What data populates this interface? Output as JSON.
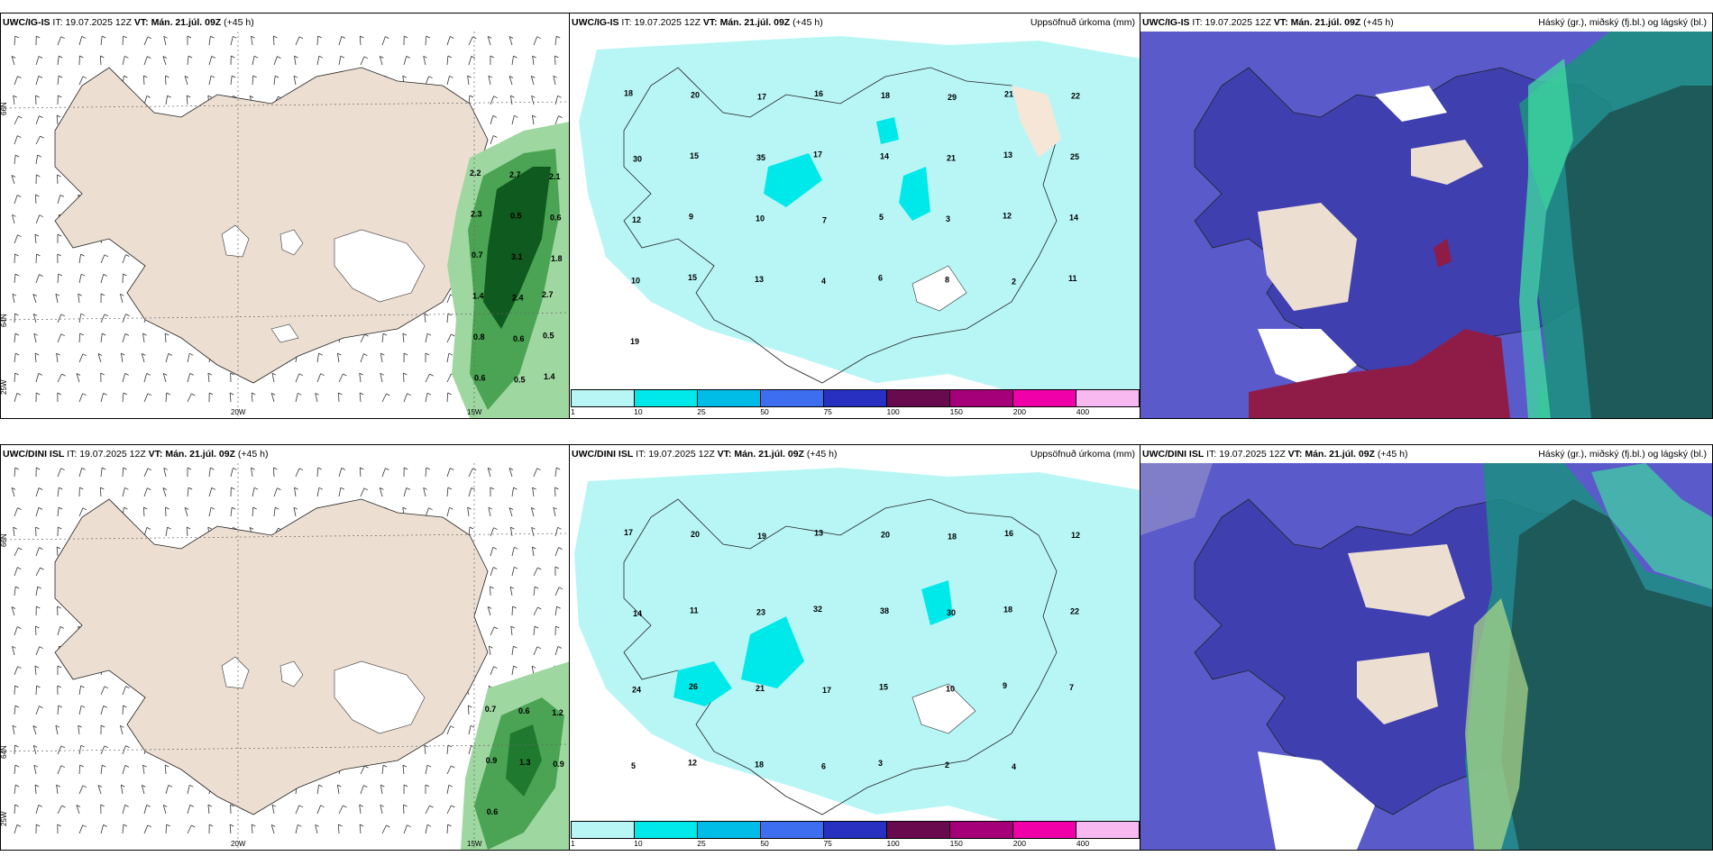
{
  "header_prefix_it": "IT:",
  "header_prefix_vt": "VT:",
  "run_time": "19.07.2025 12Z",
  "valid_time": "Mán. 21.júl. 09Z",
  "lead": "(+45 h)",
  "rows": [
    {
      "model": "UWC/IG-IS"
    },
    {
      "model": "UWC/DINI ISL"
    }
  ],
  "titles": {
    "wind": "",
    "precip": "Uppsöfnuð úrkoma (mm)",
    "cloud": "Háský (gr.), miðský (fj.bl.) og lágský (bl.)"
  },
  "axis_labels": {
    "lon_20": "20W",
    "lon_15": "15W",
    "lat_66": "66N",
    "lat_64": "64N",
    "lat_65w": "25W"
  },
  "colorbar": {
    "ticks": [
      "1",
      "10",
      "25",
      "50",
      "75",
      "100",
      "150",
      "200",
      "400"
    ],
    "colors": [
      "#b8f6f6",
      "#00e9ea",
      "#00bde8",
      "#3d6ef0",
      "#2730c0",
      "#6a0a4e",
      "#a5007a",
      "#f000a8",
      "#f8b8f0"
    ]
  },
  "wind_precip_labels_top": [
    "2.2",
    "2.7",
    "2.1",
    "2.3",
    "0.5",
    "0.6",
    "0.7",
    "3.1",
    "1.8",
    "1.4",
    "2.4",
    "2.7",
    "0.8",
    "0.6",
    "0.5",
    "0.6",
    "0.5",
    "1.4"
  ],
  "wind_precip_labels_bottom": [
    "0.7",
    "0.6",
    "1.2",
    "0.9",
    "1.3",
    "0.9",
    "0.6"
  ],
  "precip_values_top": [
    "18",
    "20",
    "17",
    "16",
    "18",
    "29",
    "21",
    "22",
    "30",
    "15",
    "35",
    "17",
    "14",
    "21",
    "13",
    "25",
    "12",
    "9",
    "10",
    "7",
    "5",
    "3",
    "12",
    "14",
    "10",
    "15",
    "13",
    "4",
    "6",
    "8",
    "2",
    "11",
    "19"
  ],
  "precip_values_bottom": [
    "17",
    "20",
    "19",
    "13",
    "20",
    "18",
    "16",
    "12",
    "14",
    "11",
    "23",
    "32",
    "38",
    "30",
    "18",
    "22",
    "24",
    "26",
    "21",
    "17",
    "15",
    "10",
    "9",
    "7",
    "5",
    "12",
    "18",
    "6",
    "3",
    "2",
    "4"
  ]
}
